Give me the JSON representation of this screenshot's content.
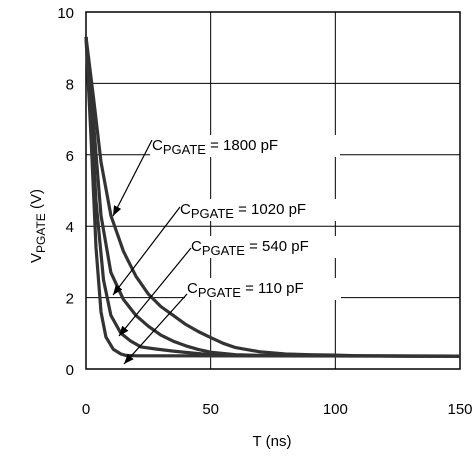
{
  "chart_data": {
    "type": "line",
    "xlabel": "T (ns)",
    "ylabel": {
      "main": "V",
      "sub": "PGATE",
      "unit": " (V)"
    },
    "xlim": [
      0,
      150
    ],
    "ylim": [
      0,
      10
    ],
    "xticks": [
      0,
      50,
      100,
      150
    ],
    "yticks": [
      0,
      2,
      4,
      6,
      8,
      10
    ],
    "grid": true,
    "series": [
      {
        "name": "C_PGATE = 1800 pF",
        "label": {
          "main": "C",
          "sub": "PGATE",
          "rest": " = 1800 pF"
        },
        "points": [
          [
            0,
            9.3
          ],
          [
            3,
            7.6
          ],
          [
            6,
            5.8
          ],
          [
            10,
            4.3
          ],
          [
            15,
            3.3
          ],
          [
            20,
            2.6
          ],
          [
            25,
            2.1
          ],
          [
            30,
            1.75
          ],
          [
            35,
            1.5
          ],
          [
            40,
            1.25
          ],
          [
            45,
            1.05
          ],
          [
            50,
            0.88
          ],
          [
            55,
            0.72
          ],
          [
            60,
            0.6
          ],
          [
            70,
            0.48
          ],
          [
            80,
            0.42
          ],
          [
            90,
            0.4
          ],
          [
            100,
            0.39
          ],
          [
            110,
            0.37
          ],
          [
            130,
            0.36
          ],
          [
            150,
            0.36
          ]
        ]
      },
      {
        "name": "C_PGATE = 1020 pF",
        "label": {
          "main": "C",
          "sub": "PGATE",
          "rest": " = 1020 pF"
        },
        "points": [
          [
            0,
            9.3
          ],
          [
            3,
            6.9
          ],
          [
            6,
            4.3
          ],
          [
            10,
            2.7
          ],
          [
            15,
            1.95
          ],
          [
            20,
            1.5
          ],
          [
            25,
            1.2
          ],
          [
            30,
            0.95
          ],
          [
            35,
            0.78
          ],
          [
            40,
            0.65
          ],
          [
            45,
            0.55
          ],
          [
            50,
            0.47
          ],
          [
            60,
            0.4
          ],
          [
            70,
            0.38
          ],
          [
            90,
            0.37
          ],
          [
            150,
            0.36
          ]
        ]
      },
      {
        "name": "C_PGATE = 540 pF",
        "label": {
          "main": "C",
          "sub": "PGATE",
          "rest": " = 540 pF"
        },
        "points": [
          [
            0,
            9.3
          ],
          [
            2,
            7.3
          ],
          [
            4,
            4.7
          ],
          [
            7,
            2.5
          ],
          [
            10,
            1.5
          ],
          [
            14,
            1.0
          ],
          [
            18,
            0.78
          ],
          [
            22,
            0.62
          ],
          [
            28,
            0.56
          ],
          [
            35,
            0.5
          ],
          [
            42,
            0.45
          ],
          [
            50,
            0.4
          ],
          [
            60,
            0.38
          ],
          [
            80,
            0.37
          ],
          [
            150,
            0.36
          ]
        ]
      },
      {
        "name": "C_PGATE = 110 pF",
        "label": {
          "main": "C",
          "sub": "PGATE",
          "rest": " = 110 pF"
        },
        "points": [
          [
            0,
            9.3
          ],
          [
            2,
            6.5
          ],
          [
            4,
            3.4
          ],
          [
            6,
            1.6
          ],
          [
            8,
            0.9
          ],
          [
            11,
            0.55
          ],
          [
            14,
            0.42
          ],
          [
            16,
            0.38
          ],
          [
            20,
            0.37
          ],
          [
            150,
            0.36
          ]
        ]
      }
    ]
  }
}
